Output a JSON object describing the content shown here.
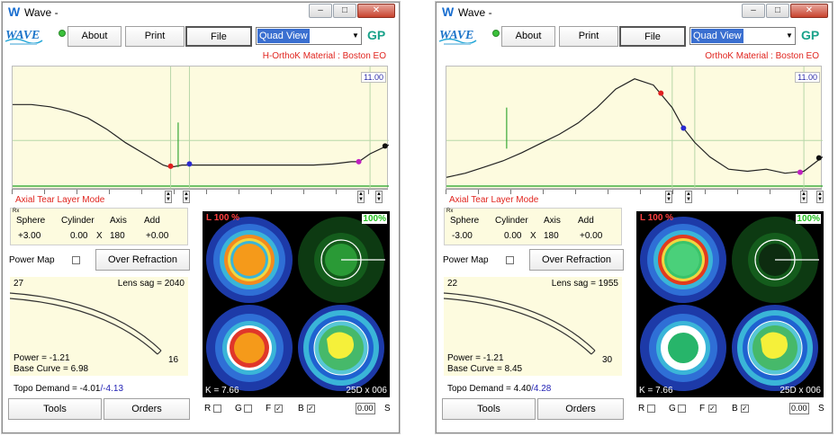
{
  "panels": [
    {
      "title": "Wave -",
      "about": "About",
      "print": "Print",
      "file": "File",
      "view": "Quad View",
      "gp": "GP",
      "material": "H-OrthoK Material : Boston EO",
      "plot_value": "11.00",
      "mode": "Axial Tear Layer Mode",
      "rx_tag": "Rx",
      "headers": [
        "Sphere",
        "Cylinder",
        "Axis",
        "Add"
      ],
      "values": [
        "+3.00",
        "0.00",
        "X",
        "180",
        "+0.00"
      ],
      "power_map": "Power Map",
      "over_refraction": "Over Refraction",
      "lens_top_left": "27",
      "lens_sag": "Lens sag = 2040",
      "lens_right": "16",
      "power": "Power = -1.21",
      "base_curve": "Base Curve = 6.98",
      "topo_label": "Topo Demand = -4.01",
      "topo_value": "/-4.13",
      "tools": "Tools",
      "orders": "Orders",
      "map_l": "L 100 %",
      "map_pct": "100%",
      "map_k": "K = 7.66",
      "map_grid": "25D x 006",
      "bottom": [
        "R",
        "G",
        "F",
        "B"
      ],
      "zoom": "0.00",
      "s": "S",
      "chart_data": {
        "type": "line",
        "title": "",
        "xlabel": "",
        "ylabel": "",
        "x": [
          0,
          0.05,
          0.1,
          0.15,
          0.2,
          0.25,
          0.3,
          0.35,
          0.4,
          0.42,
          0.45,
          0.5,
          0.55,
          0.6,
          0.65,
          0.7,
          0.75,
          0.8,
          0.85,
          0.9,
          0.92,
          0.95,
          1.0
        ],
        "y": [
          0.66,
          0.66,
          0.64,
          0.6,
          0.54,
          0.44,
          0.32,
          0.22,
          0.12,
          0.1,
          0.12,
          0.12,
          0.12,
          0.12,
          0.12,
          0.12,
          0.12,
          0.12,
          0.13,
          0.15,
          0.15,
          0.22,
          0.3
        ],
        "xlim": [
          0,
          1
        ],
        "ylim": [
          -0.1,
          1.0
        ]
      }
    },
    {
      "title": "Wave -",
      "about": "About",
      "print": "Print",
      "file": "File",
      "view": "Quad View",
      "gp": "GP",
      "material": "OrthoK Material : Boston EO",
      "plot_value": "11.00",
      "mode": "Axial Tear Layer Mode",
      "rx_tag": "Rx",
      "headers": [
        "Sphere",
        "Cylinder",
        "Axis",
        "Add"
      ],
      "values": [
        "-3.00",
        "0.00",
        "X",
        "180",
        "+0.00"
      ],
      "power_map": "Power Map",
      "over_refraction": "Over Refraction",
      "lens_top_left": "22",
      "lens_sag": "Lens sag = 1955",
      "lens_right": "30",
      "power": "Power = -1.21",
      "base_curve": "Base Curve = 8.45",
      "topo_label": "Topo Demand = 4.40",
      "topo_value": "/4.28",
      "tools": "Tools",
      "orders": "Orders",
      "map_l": "L 100 %",
      "map_pct": "100%",
      "map_k": "K = 7.66",
      "map_grid": "25D x 006",
      "bottom": [
        "R",
        "G",
        "F",
        "B"
      ],
      "zoom": "0.00",
      "s": "S",
      "chart_data": {
        "type": "line",
        "title": "",
        "xlabel": "",
        "ylabel": "",
        "x": [
          0,
          0.05,
          0.1,
          0.15,
          0.2,
          0.25,
          0.3,
          0.35,
          0.4,
          0.45,
          0.5,
          0.55,
          0.6,
          0.63,
          0.66,
          0.7,
          0.75,
          0.8,
          0.85,
          0.9,
          0.95,
          1.0
        ],
        "y": [
          0.02,
          0.06,
          0.12,
          0.18,
          0.26,
          0.35,
          0.44,
          0.55,
          0.7,
          0.88,
          0.98,
          0.92,
          0.7,
          0.5,
          0.36,
          0.22,
          0.1,
          0.08,
          0.1,
          0.06,
          0.08,
          0.22
        ],
        "xlim": [
          0,
          1
        ],
        "ylim": [
          -0.1,
          1.1
        ]
      }
    }
  ]
}
